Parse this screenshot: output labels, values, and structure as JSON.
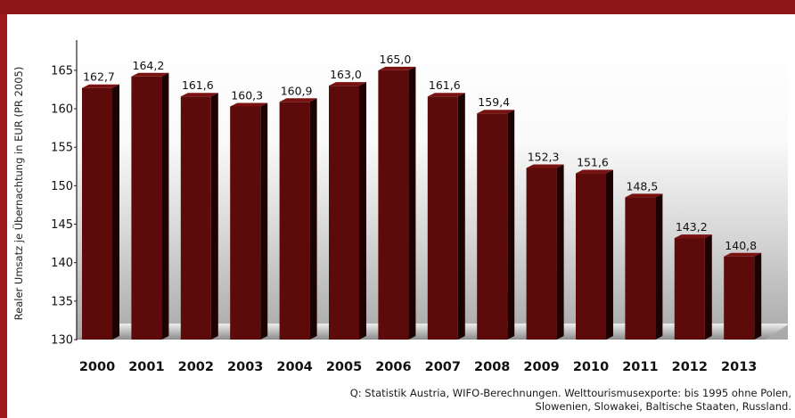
{
  "chart_data": {
    "type": "bar",
    "categories": [
      "2000",
      "2001",
      "2002",
      "2003",
      "2004",
      "2005",
      "2006",
      "2007",
      "2008",
      "2009",
      "2010",
      "2011",
      "2012",
      "2013"
    ],
    "values": [
      162.7,
      164.2,
      161.6,
      160.3,
      160.9,
      163.0,
      165.0,
      161.6,
      159.4,
      152.3,
      151.6,
      148.5,
      143.2,
      140.8
    ],
    "value_labels": [
      "162,7",
      "164,2",
      "161,6",
      "160,3",
      "160,9",
      "163,0",
      "165,0",
      "161,6",
      "159,4",
      "152,3",
      "151,6",
      "148,5",
      "143,2",
      "140,8"
    ],
    "ylabel": "Realer Umsatz je Übernachtung in EUR (PR 2005)",
    "ylim": [
      130,
      168
    ],
    "yticks": [
      130,
      135,
      140,
      145,
      150,
      155,
      160,
      165
    ],
    "grid": false,
    "bar_color": "#5c0a0a",
    "bar_side_color": "#1e0202"
  },
  "source": {
    "line1": "Q: Statistik Austria, WIFO-Berechnungen. Welttourismusexporte: bis 1995 ohne Polen,",
    "line2": "Slowenien, Slowakei, Baltische Staaten, Russland."
  },
  "colors": {
    "frame": "#a0191c",
    "panel": "#ffffff"
  }
}
